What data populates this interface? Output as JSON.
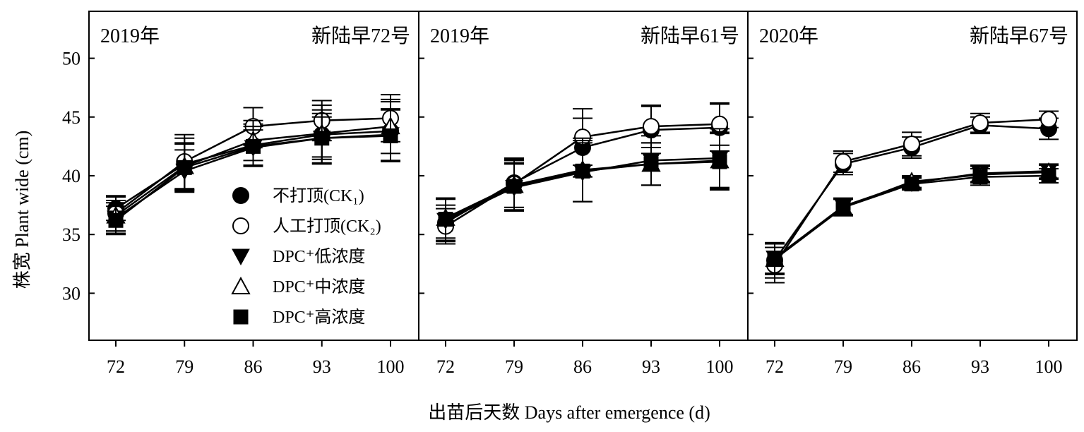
{
  "x_axis_title": "出苗后天数  Days after emergence (d)",
  "y_axis_title": "株宽   Plant wide (cm)",
  "legend": [
    {
      "label": "不打顶(CK₁)",
      "marker": "filled-circle"
    },
    {
      "label": "人工打顶(CK₂)",
      "marker": "open-circle"
    },
    {
      "label": "DPC⁺低浓度",
      "marker": "filled-triangle-down"
    },
    {
      "label": "DPC⁺中浓度",
      "marker": "open-triangle-up"
    },
    {
      "label": "DPC⁺高浓度",
      "marker": "filled-square"
    }
  ],
  "chart_data": [
    {
      "type": "line",
      "year_label": "2019年",
      "variety_label": "新陆早72号",
      "x": [
        72,
        79,
        86,
        93,
        100
      ],
      "xticks": [
        "72",
        "79",
        "86",
        "93",
        "100"
      ],
      "ylim": [
        26,
        54
      ],
      "yticks": [
        30,
        35,
        40,
        45,
        50
      ],
      "ytick_labels": [
        "30",
        "35",
        "40",
        "45",
        "50"
      ],
      "show_y_tick_labels": true,
      "series": [
        {
          "name": "不打顶(CK₁)",
          "values": [
            37.2,
            41.0,
            42.6,
            43.5,
            43.8
          ],
          "err": [
            1.0,
            2.2,
            1.8,
            2.5,
            2.5
          ]
        },
        {
          "name": "人工打顶(CK₂)",
          "values": [
            36.8,
            41.2,
            44.2,
            44.7,
            44.9
          ],
          "err": [
            1.5,
            2.3,
            1.6,
            1.7,
            2.0
          ]
        },
        {
          "name": "DPC⁺低浓度",
          "values": [
            36.4,
            40.4,
            42.4,
            43.2,
            43.5
          ],
          "err": [
            1.3,
            1.8,
            1.5,
            1.8,
            2.2
          ]
        },
        {
          "name": "DPC⁺中浓度",
          "values": [
            36.6,
            40.8,
            43.0,
            43.6,
            44.2
          ],
          "err": [
            1.3,
            2.0,
            1.7,
            2.0,
            2.3
          ]
        },
        {
          "name": "DPC⁺高浓度",
          "values": [
            36.2,
            40.7,
            42.5,
            43.2,
            43.4
          ],
          "err": [
            1.2,
            2.0,
            1.7,
            2.1,
            2.2
          ]
        }
      ]
    },
    {
      "type": "line",
      "year_label": "2019年",
      "variety_label": "新陆早61号",
      "x": [
        72,
        79,
        86,
        93,
        100
      ],
      "xticks": [
        "72",
        "79",
        "86",
        "93",
        "100"
      ],
      "ylim": [
        26,
        54
      ],
      "yticks": [
        30,
        35,
        40,
        45,
        50
      ],
      "ytick_labels": [],
      "show_y_tick_labels": false,
      "series": [
        {
          "name": "不打顶(CK₁)",
          "values": [
            36.0,
            39.4,
            42.4,
            43.9,
            44.1
          ],
          "err": [
            1.5,
            2.1,
            2.5,
            2.0,
            2.0
          ]
        },
        {
          "name": "人工打顶(CK₂)",
          "values": [
            35.7,
            39.3,
            43.3,
            44.2,
            44.4
          ],
          "err": [
            1.5,
            2.0,
            2.4,
            1.8,
            1.8
          ]
        },
        {
          "name": "DPC⁺低浓度",
          "values": [
            36.2,
            39.0,
            40.3,
            41.3,
            41.5
          ],
          "err": [
            1.8,
            2.0,
            2.5,
            2.1,
            2.5
          ]
        },
        {
          "name": "DPC⁺中浓度",
          "values": [
            36.4,
            39.2,
            40.5,
            41.0,
            41.3
          ],
          "err": [
            1.7,
            2.2,
            2.7,
            1.8,
            2.4
          ]
        },
        {
          "name": "DPC⁺高浓度",
          "values": [
            36.3,
            39.1,
            40.4,
            41.0,
            41.2
          ],
          "err": [
            1.8,
            2.0,
            2.6,
            1.8,
            2.4
          ]
        }
      ]
    },
    {
      "type": "line",
      "year_label": "2020年",
      "variety_label": "新陆早67号",
      "x": [
        72,
        79,
        86,
        93,
        100
      ],
      "xticks": [
        "72",
        "79",
        "86",
        "93",
        "100"
      ],
      "ylim": [
        26,
        54
      ],
      "yticks": [
        30,
        35,
        40,
        45,
        50
      ],
      "ytick_labels": [],
      "show_y_tick_labels": false,
      "series": [
        {
          "name": "不打顶(CK₁)",
          "values": [
            32.8,
            41.0,
            42.4,
            44.3,
            44.0
          ],
          "err": [
            1.5,
            0.9,
            0.9,
            0.7,
            0.9
          ]
        },
        {
          "name": "人工打顶(CK₂)",
          "values": [
            32.4,
            41.2,
            42.7,
            44.5,
            44.8
          ],
          "err": [
            1.5,
            0.9,
            1.0,
            0.8,
            0.7
          ]
        },
        {
          "name": "DPC⁺低浓度",
          "values": [
            33.0,
            37.4,
            39.4,
            40.2,
            40.4
          ],
          "err": [
            1.3,
            0.7,
            0.5,
            0.7,
            0.6
          ]
        },
        {
          "name": "DPC⁺中浓度",
          "values": [
            32.9,
            37.3,
            39.5,
            40.1,
            40.3
          ],
          "err": [
            1.3,
            0.7,
            0.5,
            0.7,
            0.6
          ]
        },
        {
          "name": "DPC⁺高浓度",
          "values": [
            32.9,
            37.3,
            39.3,
            39.9,
            40.0
          ],
          "err": [
            1.3,
            0.7,
            0.5,
            0.7,
            0.6
          ]
        }
      ]
    }
  ]
}
